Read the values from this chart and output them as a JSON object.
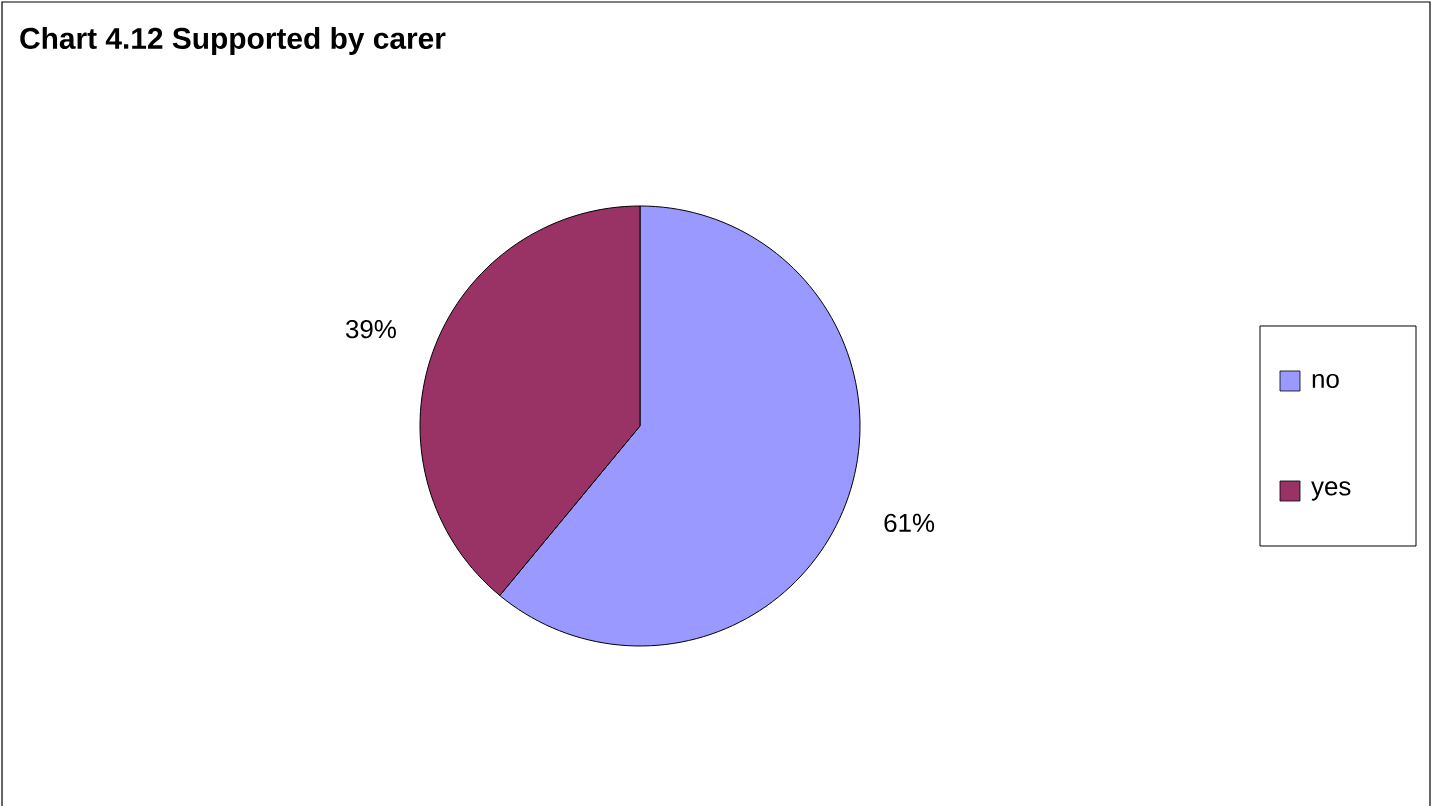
{
  "chart_data": {
    "type": "pie",
    "title": "Chart 4.12 Supported by carer",
    "categories": [
      "no",
      "yes"
    ],
    "values": [
      61,
      39
    ],
    "value_labels": [
      "61%",
      "39%"
    ],
    "colors": [
      "#9999ff",
      "#993366"
    ],
    "legend": "right"
  }
}
